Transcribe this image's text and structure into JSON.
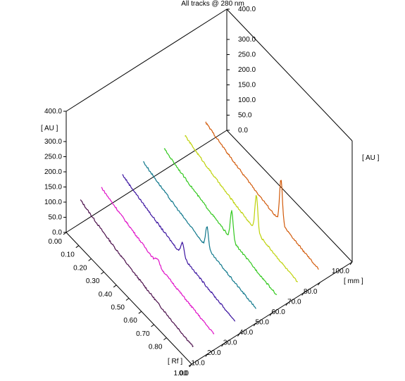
{
  "chart_data": {
    "type": "line",
    "title": "All tracks @ 280 nm",
    "y_axis": {
      "label": "[ AU ]",
      "ticks": [
        "0.0",
        "50.0",
        "100.0",
        "150.0",
        "200.0",
        "250.0",
        "300.0",
        "400.0"
      ],
      "range": [
        0,
        400
      ]
    },
    "rf_axis": {
      "label": "[ Rf ]",
      "ticks": [
        "0.00",
        "0.10",
        "0.20",
        "0.30",
        "0.40",
        "0.50",
        "0.60",
        "0.70",
        "0.80",
        "1.00"
      ],
      "range": [
        0,
        1
      ]
    },
    "mm_axis": {
      "label": "[ mm ]",
      "ticks": [
        "0.0",
        "10.0",
        "20.0",
        "30.0",
        "40.0",
        "50.0",
        "60.0",
        "70.0",
        "80.0",
        "100.0"
      ],
      "range": [
        0,
        100
      ]
    },
    "series": [
      {
        "track_mm": 5,
        "color": "#4b0f4b",
        "baseline": [
          120,
          102,
          86,
          72,
          60,
          50,
          40,
          30,
          22,
          15
        ],
        "peaks": []
      },
      {
        "track_mm": 18,
        "color": "#e012c8",
        "baseline": [
          118,
          100,
          85,
          71,
          58,
          46,
          37,
          28,
          20,
          14
        ],
        "peaks": [
          {
            "rf": 0.5,
            "height": 18,
            "width": 0.02
          }
        ]
      },
      {
        "track_mm": 31,
        "color": "#3c14a0",
        "baseline": [
          117,
          99,
          84,
          70,
          57,
          46,
          36,
          27,
          19,
          13
        ],
        "peaks": [
          {
            "rf": 0.53,
            "height": 45,
            "width": 0.018
          }
        ]
      },
      {
        "track_mm": 44,
        "color": "#10788c",
        "baseline": [
          116,
          98,
          82,
          68,
          56,
          44,
          35,
          26,
          18,
          12
        ],
        "peaks": [
          {
            "rf": 0.56,
            "height": 72,
            "width": 0.016
          }
        ]
      },
      {
        "track_mm": 57,
        "color": "#32c81e",
        "baseline": [
          115,
          97,
          81,
          67,
          55,
          43,
          34,
          25,
          17,
          11
        ],
        "peaks": [
          {
            "rf": 0.59,
            "height": 95,
            "width": 0.016
          }
        ]
      },
      {
        "track_mm": 70,
        "color": "#bed20a",
        "baseline": [
          114,
          96,
          80,
          66,
          54,
          43,
          33,
          24,
          16,
          10
        ],
        "peaks": [
          {
            "rf": 0.62,
            "height": 120,
            "width": 0.016
          }
        ]
      },
      {
        "track_mm": 83,
        "color": "#d25a0a",
        "baseline": [
          113,
          95,
          79,
          65,
          53,
          42,
          32,
          23,
          15,
          9
        ],
        "peaks": [
          {
            "rf": 0.65,
            "height": 145,
            "width": 0.016
          }
        ]
      }
    ]
  }
}
